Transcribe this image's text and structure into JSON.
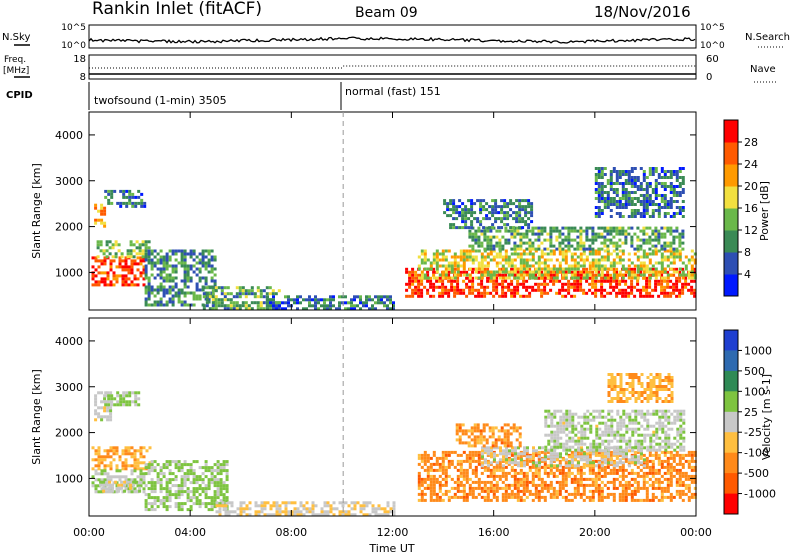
{
  "header": {
    "station": "Rankin Inlet (fitACF)",
    "beam": "Beam 09",
    "date": "18/Nov/2016"
  },
  "top_panels": {
    "nsky_label": "N.Sky",
    "nsky_ticks": [
      "10^5",
      "10^0"
    ],
    "nsearch_label": "N.Search",
    "nsearch_ticks": [
      "10^5",
      "10^0"
    ],
    "freq_label_1": "Freq.",
    "freq_label_2": "[MHz]",
    "freq_ticks": [
      "18",
      "8"
    ],
    "nave_label": "Nave",
    "nave_ticks": [
      "60",
      "0"
    ],
    "cpid_label": "CPID",
    "cpid_1": "twofsound (1-min) 3505",
    "cpid_2": "normal (fast) 151"
  },
  "colors": {
    "power_scale": [
      "#0019ff",
      "#2e4fb3",
      "#3a8a55",
      "#6ab84a",
      "#f2e040",
      "#ff9a00",
      "#ff5a00",
      "#ff0000"
    ],
    "velocity_scale": [
      "#1f3fd0",
      "#2e6ab0",
      "#2f8a55",
      "#7ec440",
      "#c8c8c8",
      "#ffbf40",
      "#ff8a1a",
      "#ff5a00",
      "#ff0000"
    ]
  },
  "chart_data": [
    {
      "type": "heatmap",
      "name": "power",
      "xlabel": "",
      "ylabel": "Slant Range [km]",
      "x_ticks": [
        "00:00",
        "04:00",
        "08:00",
        "12:00",
        "16:00",
        "20:00",
        "00:00"
      ],
      "xlim_hours": [
        0,
        24
      ],
      "ylim_km": [
        180,
        4500
      ],
      "y_ticks": [
        1000,
        2000,
        3000,
        4000
      ],
      "colorbar": {
        "label": "Power [dB]",
        "ticks": [
          "4",
          "8",
          "12",
          "16",
          "20",
          "24",
          "28"
        ],
        "range": [
          0,
          32
        ]
      },
      "regions": [
        {
          "t0": 0.1,
          "t1": 2.2,
          "r0": 700,
          "r1": 1350,
          "value": 28
        },
        {
          "t0": 0.3,
          "t1": 2.4,
          "r0": 1350,
          "r1": 1700,
          "value": 14
        },
        {
          "t0": 0.2,
          "t1": 0.6,
          "r0": 2000,
          "r1": 2500,
          "value": 22
        },
        {
          "t0": 0.6,
          "t1": 2.2,
          "r0": 2450,
          "r1": 2800,
          "value": 8
        },
        {
          "t0": 2.2,
          "t1": 5.0,
          "r0": 300,
          "r1": 1500,
          "value": 10
        },
        {
          "t0": 4.5,
          "t1": 7.5,
          "r0": 180,
          "r1": 700,
          "value": 12
        },
        {
          "t0": 7.0,
          "t1": 12.0,
          "r0": 180,
          "r1": 500,
          "value": 8
        },
        {
          "t0": 12.5,
          "t1": 24.0,
          "r0": 500,
          "r1": 1100,
          "value": 28
        },
        {
          "t0": 13.0,
          "t1": 24.0,
          "r0": 900,
          "r1": 1500,
          "value": 18
        },
        {
          "t0": 15.0,
          "t1": 23.5,
          "r0": 1500,
          "r1": 2000,
          "value": 12
        },
        {
          "t0": 14.0,
          "t1": 17.5,
          "r0": 2000,
          "r1": 2600,
          "value": 8
        },
        {
          "t0": 20.0,
          "t1": 23.5,
          "r0": 2200,
          "r1": 3300,
          "value": 8
        }
      ]
    },
    {
      "type": "heatmap",
      "name": "velocity",
      "xlabel": "Time UT",
      "ylabel": "Slant Range [km]",
      "x_ticks": [
        "00:00",
        "04:00",
        "08:00",
        "12:00",
        "16:00",
        "20:00",
        "00:00"
      ],
      "xlim_hours": [
        0,
        24
      ],
      "ylim_km": [
        180,
        4500
      ],
      "y_ticks": [
        1000,
        2000,
        3000,
        4000
      ],
      "colorbar": {
        "label": "Velocity [m s-1]",
        "ticks": [
          "1000",
          "500",
          "100",
          "25",
          "-25",
          "-100",
          "-500",
          "-1000"
        ]
      },
      "regions": [
        {
          "t0": 0.1,
          "t1": 2.4,
          "r0": 1200,
          "r1": 1700,
          "value": -300
        },
        {
          "t0": 0.1,
          "t1": 2.2,
          "r0": 700,
          "r1": 1200,
          "value": 100
        },
        {
          "t0": 0.4,
          "t1": 2.0,
          "r0": 700,
          "r1": 950,
          "value": 0
        },
        {
          "t0": 0.2,
          "t1": 0.8,
          "r0": 2300,
          "r1": 2900,
          "value": 0
        },
        {
          "t0": 0.6,
          "t1": 2.0,
          "r0": 2600,
          "r1": 2900,
          "value": 120
        },
        {
          "t0": 2.2,
          "t1": 5.5,
          "r0": 300,
          "r1": 1400,
          "value": 150
        },
        {
          "t0": 5.0,
          "t1": 12.0,
          "r0": 180,
          "r1": 500,
          "value": -100
        },
        {
          "t0": 13.0,
          "t1": 24.0,
          "r0": 500,
          "r1": 1600,
          "value": -450
        },
        {
          "t0": 15.5,
          "t1": 22.0,
          "r0": 1300,
          "r1": 1700,
          "value": 0
        },
        {
          "t0": 14.5,
          "t1": 17.0,
          "r0": 1700,
          "r1": 2200,
          "value": -400
        },
        {
          "t0": 18.0,
          "t1": 23.5,
          "r0": 1600,
          "r1": 2500,
          "value": 60
        },
        {
          "t0": 20.5,
          "t1": 23.0,
          "r0": 2700,
          "r1": 3300,
          "value": -300
        }
      ]
    }
  ]
}
